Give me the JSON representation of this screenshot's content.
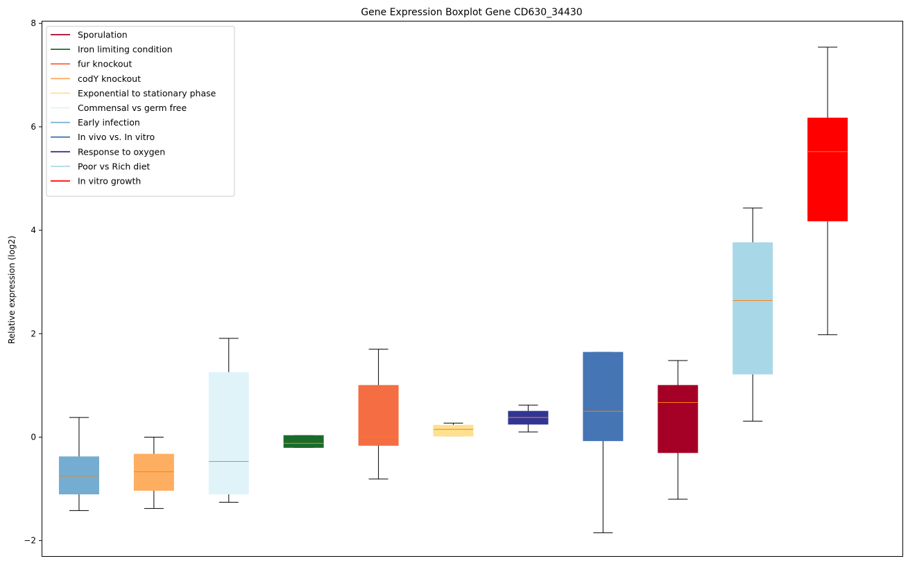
{
  "chart_data": {
    "type": "boxplot",
    "title": "Gene Expression Boxplot Gene CD630_34430",
    "xlabel": "",
    "ylabel": "Relative expression (log2)",
    "ylim": [
      -2.3,
      8.05
    ],
    "yticks": [
      -2,
      0,
      2,
      4,
      6,
      8
    ],
    "ytick_labels": [
      "−2",
      "0",
      "2",
      "4",
      "6",
      "8"
    ],
    "legend": {
      "position": "top-left",
      "entries": [
        {
          "label": "Sporulation",
          "color": "#a50026"
        },
        {
          "label": "Iron limiting condition",
          "color": "#1a6b2a"
        },
        {
          "label": "fur knockout",
          "color": "#f46d43"
        },
        {
          "label": "codY knockout",
          "color": "#fdae61"
        },
        {
          "label": "Exponential to stationary phase",
          "color": "#fee090"
        },
        {
          "label": "Commensal vs germ free",
          "color": "#e0f3f8"
        },
        {
          "label": "Early infection",
          "color": "#74add1"
        },
        {
          "label": "In vivo vs. In vitro",
          "color": "#4575b4"
        },
        {
          "label": "Response to oxygen",
          "color": "#313695"
        },
        {
          "label": "Poor vs Rich diet",
          "color": "#abd9e9"
        },
        {
          "label": "In vitro growth",
          "color": "#ff0000"
        }
      ]
    },
    "median_color": "#ff7f0e",
    "boxes": [
      {
        "group": "Early infection",
        "color": "#74add1",
        "whislo": -1.42,
        "q1": -1.1,
        "med": -0.75,
        "q3": -0.38,
        "whishi": 0.38
      },
      {
        "group": "codY knockout",
        "color": "#fdae61",
        "whislo": -1.38,
        "q1": -1.03,
        "med": -0.67,
        "q3": -0.33,
        "whishi": 0.0
      },
      {
        "group": "Commensal vs germ free",
        "color": "#e0f3f8",
        "whislo": -1.26,
        "q1": -1.1,
        "med": -0.47,
        "q3": 1.25,
        "whishi": 1.91
      },
      {
        "group": "Iron limiting condition",
        "color": "#1a6b2a",
        "whislo": -0.2,
        "q1": -0.2,
        "med": -0.12,
        "q3": 0.03,
        "whishi": 0.03
      },
      {
        "group": "fur knockout",
        "color": "#f46d43",
        "whislo": -0.81,
        "q1": -0.16,
        "med": 0.0,
        "q3": 1.0,
        "whishi": 1.7
      },
      {
        "group": "Exponential to stationary phase",
        "color": "#fee090",
        "whislo": 0.02,
        "q1": 0.02,
        "med": 0.15,
        "q3": 0.23,
        "whishi": 0.27
      },
      {
        "group": "Response to oxygen",
        "color": "#313695",
        "whislo": 0.1,
        "q1": 0.25,
        "med": 0.38,
        "q3": 0.5,
        "whishi": 0.62
      },
      {
        "group": "In vivo vs. In vitro",
        "color": "#4575b4",
        "whislo": -1.85,
        "q1": -0.07,
        "med": 0.5,
        "q3": 1.64,
        "whishi": 1.64
      },
      {
        "group": "Sporulation",
        "color": "#a50026",
        "whislo": -1.2,
        "q1": -0.3,
        "med": 0.67,
        "q3": 1.0,
        "whishi": 1.48
      },
      {
        "group": "Poor vs Rich diet",
        "color": "#a8d8e8",
        "whislo": 0.31,
        "q1": 1.22,
        "med": 2.64,
        "q3": 3.76,
        "whishi": 4.43
      },
      {
        "group": "In vitro growth",
        "color": "#ff0000",
        "whislo": 1.98,
        "q1": 4.18,
        "med": 5.52,
        "q3": 6.17,
        "whishi": 7.54
      }
    ]
  }
}
